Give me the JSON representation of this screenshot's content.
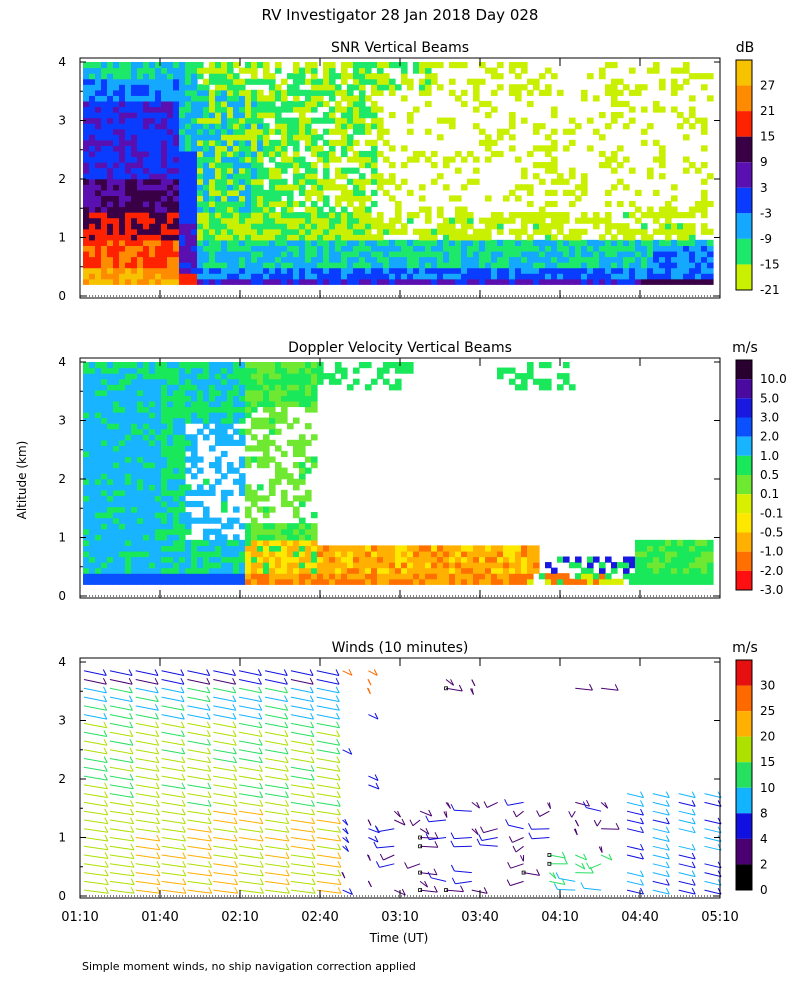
{
  "figure": {
    "title": "RV Investigator  28 Jan 2018 Day 028",
    "ylabel": "Altitude (km)",
    "xlabel": "Time (UT)",
    "footnote": "Simple moment winds, no ship navigation correction applied"
  },
  "chart_data": [
    {
      "type": "heatmap",
      "title": "SNR Vertical Beams",
      "units": "dB",
      "x_ticks": [
        "01:10",
        "01:40",
        "02:10",
        "02:40",
        "03:10",
        "03:40",
        "04:10",
        "04:40",
        "05:10"
      ],
      "y_ticks": [
        "0",
        "1",
        "2",
        "3",
        "4"
      ],
      "ylim": [
        0,
        4
      ],
      "colorbar": {
        "labels": [
          "27",
          "21",
          "15",
          "9",
          "3",
          "-3",
          "-9",
          "-15",
          "-21"
        ],
        "colors": [
          "#f7c200",
          "#ff8c00",
          "#ff2200",
          "#3a0046",
          "#5a10b0",
          "#0a3cff",
          "#14a8ff",
          "#1ee86a",
          "#c8f000"
        ]
      }
    },
    {
      "type": "heatmap",
      "title": "Doppler Velocity Vertical Beams",
      "units": "m/s",
      "x_ticks": [
        "01:10",
        "01:40",
        "02:10",
        "02:40",
        "03:10",
        "03:40",
        "04:10",
        "04:40",
        "05:10"
      ],
      "y_ticks": [
        "0",
        "1",
        "2",
        "3",
        "4"
      ],
      "ylim": [
        0,
        4
      ],
      "colorbar": {
        "labels": [
          "10.0",
          "5.0",
          "3.0",
          "2.0",
          "1.0",
          "0.5",
          "0.1",
          "-0.1",
          "-0.5",
          "-1.0",
          "-2.0",
          "-3.0"
        ],
        "colors": [
          "#2a0030",
          "#4a0aa0",
          "#1818e0",
          "#0a50ff",
          "#18b4ff",
          "#18e85a",
          "#6ee830",
          "#d8f000",
          "#ffe800",
          "#ffb000",
          "#ff7000",
          "#ff1010"
        ]
      }
    },
    {
      "type": "barbs",
      "title": "Winds (10 minutes)",
      "units": "m/s",
      "x_ticks": [
        "01:10",
        "01:40",
        "02:10",
        "02:40",
        "03:10",
        "03:40",
        "04:10",
        "04:40",
        "05:10"
      ],
      "y_ticks": [
        "0",
        "1",
        "2",
        "3",
        "4"
      ],
      "ylim": [
        0,
        4
      ],
      "colorbar": {
        "labels": [
          "30",
          "25",
          "20",
          "15",
          "10",
          "8",
          "4",
          "2",
          "0"
        ],
        "colors": [
          "#e61010",
          "#ff6a00",
          "#ffb000",
          "#aee000",
          "#28e060",
          "#12b4ff",
          "#1010e0",
          "#4a0070",
          "#000000"
        ]
      }
    }
  ]
}
